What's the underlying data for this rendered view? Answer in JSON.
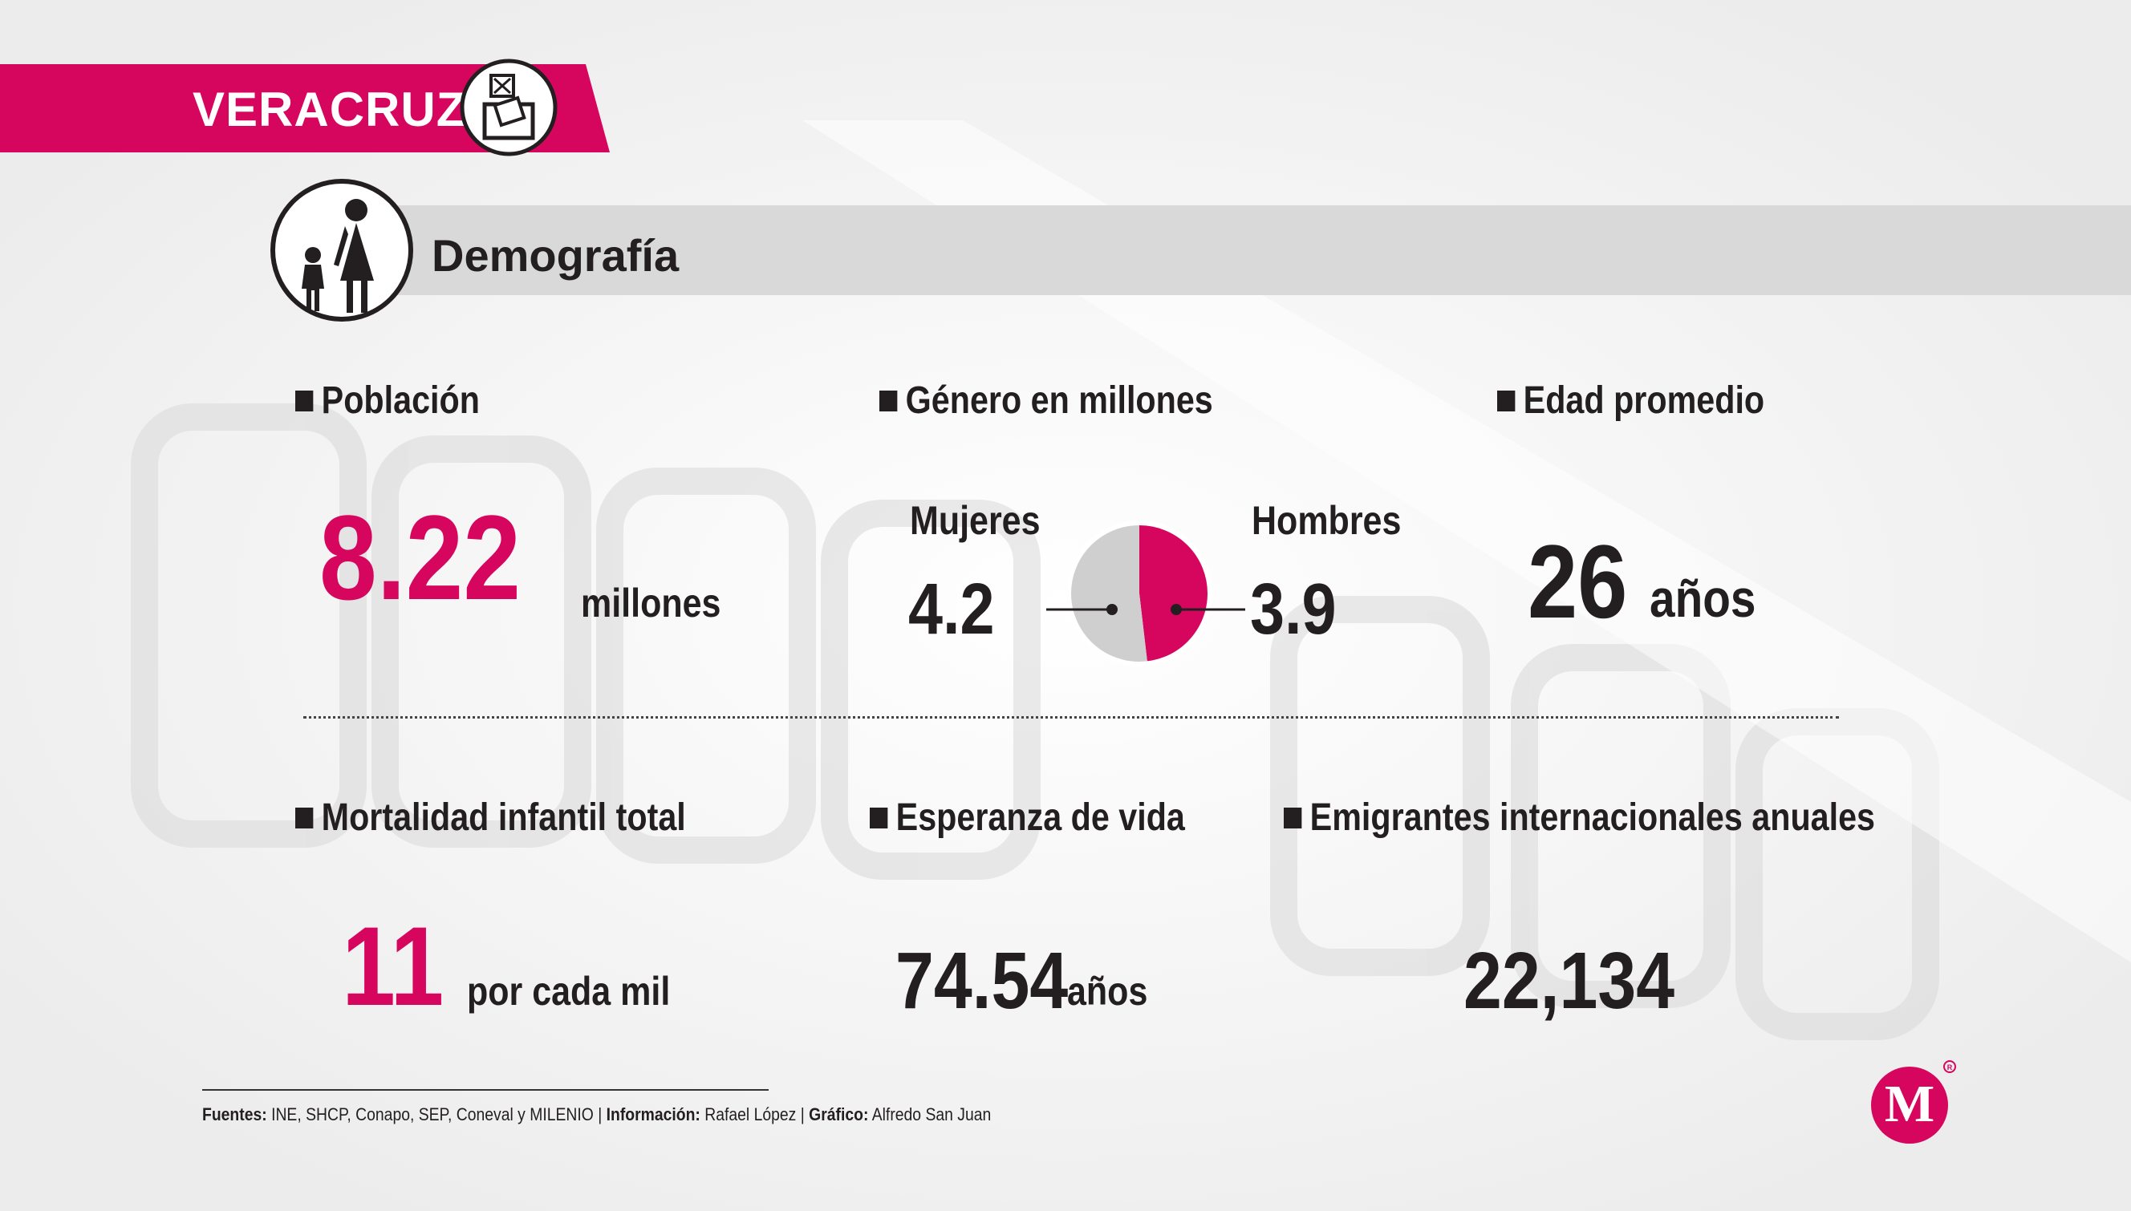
{
  "header": {
    "state": "VERACRUZ"
  },
  "section": {
    "title": "Demografía"
  },
  "stats": {
    "poblacion": {
      "label": "Población",
      "value": "8.22",
      "unit": "millones"
    },
    "genero": {
      "label": "Género en millones",
      "mujeres_label": "Mujeres",
      "mujeres_value": "4.2",
      "hombres_label": "Hombres",
      "hombres_value": "3.9"
    },
    "edad": {
      "label": "Edad promedio",
      "value": "26",
      "unit": "años"
    },
    "mortalidad": {
      "label": "Mortalidad infantil total",
      "value": "11",
      "unit": "por cada mil"
    },
    "esperanza": {
      "label": "Esperanza de vida",
      "value": "74.54",
      "unit": "años"
    },
    "emigrantes": {
      "label": "Emigrantes internacionales anuales",
      "value": "22,134"
    }
  },
  "chart_data": {
    "type": "pie",
    "title": "Género en millones",
    "categories": [
      "Mujeres",
      "Hombres"
    ],
    "values": [
      4.2,
      3.9
    ],
    "colors": [
      "#cfcfcf",
      "#d6065e"
    ]
  },
  "footer": {
    "fuentes_label": "Fuentes:",
    "fuentes_value": "INE, SHCP, Conapo, SEP, Coneval y MILENIO",
    "sep": "|",
    "informacion_label": "Información:",
    "informacion_value": "Rafael López",
    "grafico_label": "Gráfico:",
    "grafico_value": "Alfredo San Juan"
  },
  "colors": {
    "accent": "#d6065e",
    "text": "#231f20",
    "bar": "#d9d9d9"
  },
  "icons": {
    "banner": "ballot-box-icon",
    "section": "mother-child-icon",
    "logo": "milenio-logo"
  }
}
